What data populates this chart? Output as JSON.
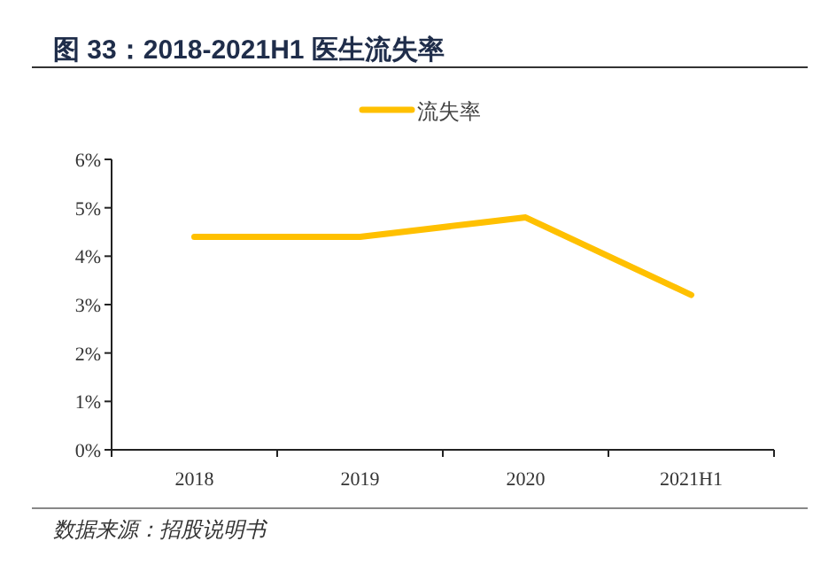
{
  "chart_data": {
    "type": "line",
    "title": "图 33：2018-2021H1 医生流失率",
    "categories": [
      "2018",
      "2019",
      "2020",
      "2021H1"
    ],
    "series": [
      {
        "name": "流失率",
        "color": "#ffc000",
        "values": [
          4.4,
          4.4,
          4.8,
          3.2
        ]
      }
    ],
    "ylim": [
      0,
      6
    ],
    "yticks": [
      {
        "value": 0,
        "label": "0%"
      },
      {
        "value": 1,
        "label": "1%"
      },
      {
        "value": 2,
        "label": "2%"
      },
      {
        "value": 3,
        "label": "3%"
      },
      {
        "value": 4,
        "label": "4%"
      },
      {
        "value": 5,
        "label": "5%"
      },
      {
        "value": 6,
        "label": "6%"
      }
    ],
    "legend": "top",
    "grid": false,
    "marker": "none",
    "line_style": "solid",
    "annotations": [
      "数据来源：招股说明书"
    ]
  }
}
